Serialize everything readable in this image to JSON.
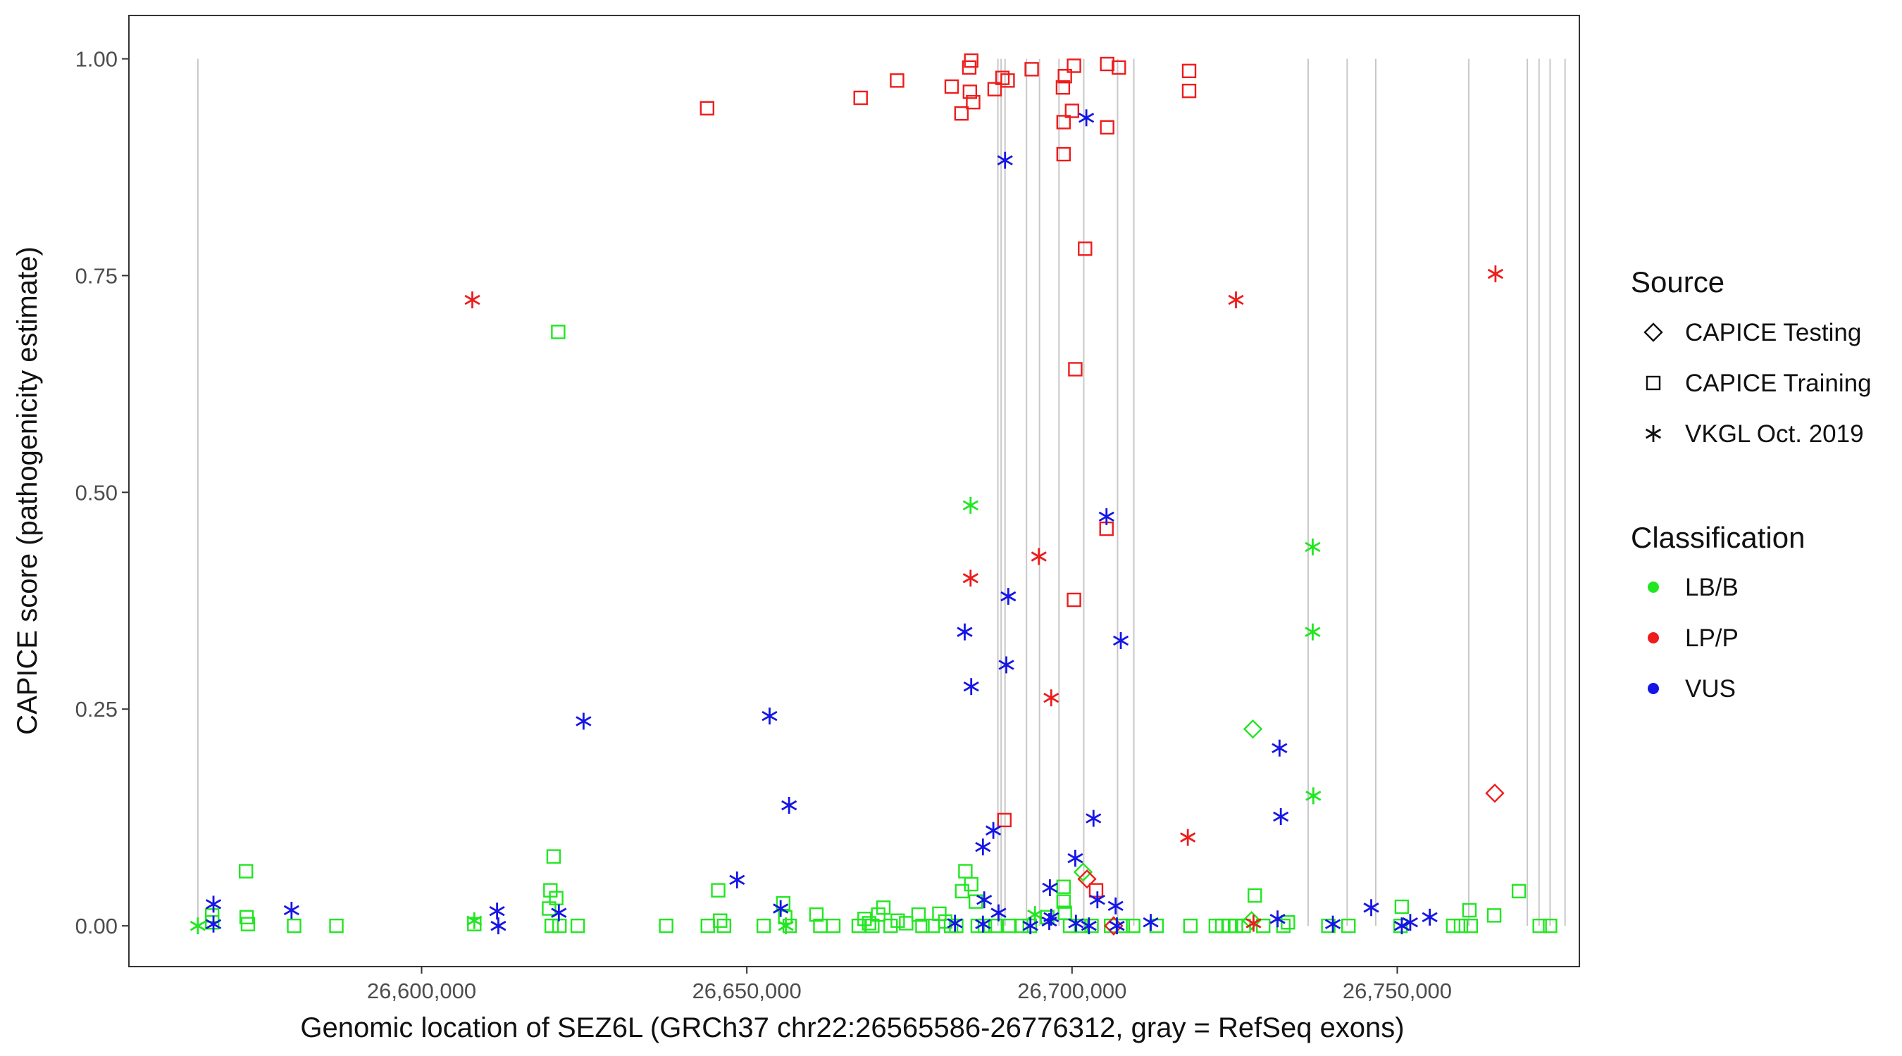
{
  "chart_data": {
    "type": "scatter",
    "xlabel": "Genomic location of SEZ6L (GRCh37 chr22:26565586-26776312, gray = RefSeq exons)",
    "ylabel": "CAPICE score (pathogenicity estimate)",
    "xlim": [
      26555000,
      26778000
    ],
    "ylim": [
      -0.047,
      1.05
    ],
    "x_ticks": [
      26600000,
      26650000,
      26700000,
      26750000
    ],
    "x_tick_labels": [
      "26,600,000",
      "26,650,000",
      "26,700,000",
      "26,750,000"
    ],
    "y_ticks": [
      0,
      0.25,
      0.5,
      0.75,
      1.0
    ],
    "y_tick_labels": [
      "0.00",
      "0.25",
      "0.50",
      "0.75",
      "1.00"
    ],
    "grid": false,
    "exon_positions": [
      26565600,
      26688600,
      26689100,
      26689700,
      26693000,
      26695000,
      26698000,
      26701800,
      26707000,
      26709500,
      26736300,
      26742300,
      26746700,
      26761000,
      26770000,
      26771800,
      26773500,
      26775800
    ],
    "colors": {
      "LB/B": "#22e622",
      "LP/P": "#ee1c1c",
      "VUS": "#1515e6",
      "exon": "#c8c8c8"
    },
    "legend": {
      "position": "right",
      "source_title": "Source",
      "source_items": [
        {
          "label": "CAPICE Testing",
          "shape": "diamond"
        },
        {
          "label": "CAPICE Training",
          "shape": "square"
        },
        {
          "label": "VKGL Oct. 2019",
          "shape": "asterisk"
        }
      ],
      "class_title": "Classification",
      "class_items": [
        {
          "label": "LB/B",
          "color": "#22e622"
        },
        {
          "label": "LP/P",
          "color": "#ee1c1c"
        },
        {
          "label": "VUS",
          "color": "#1515e6"
        }
      ]
    },
    "series": [
      {
        "name": "CAPICE Training",
        "shape": "square",
        "points": [
          [
            26643900,
            0.943,
            "LP/P"
          ],
          [
            26667500,
            0.955,
            "LP/P"
          ],
          [
            26673100,
            0.975,
            "LP/P"
          ],
          [
            26681500,
            0.968,
            "LP/P"
          ],
          [
            26683000,
            0.937,
            "LP/P"
          ],
          [
            26684200,
            0.99,
            "LP/P"
          ],
          [
            26684500,
            0.998,
            "LP/P"
          ],
          [
            26684300,
            0.962,
            "LP/P"
          ],
          [
            26684800,
            0.95,
            "LP/P"
          ],
          [
            26688100,
            0.965,
            "LP/P"
          ],
          [
            26689300,
            0.978,
            "LP/P"
          ],
          [
            26690100,
            0.975,
            "LP/P"
          ],
          [
            26693800,
            0.988,
            "LP/P"
          ],
          [
            26698600,
            0.967,
            "LP/P"
          ],
          [
            26698900,
            0.98,
            "LP/P"
          ],
          [
            26698700,
            0.927,
            "LP/P"
          ],
          [
            26700300,
            0.992,
            "LP/P"
          ],
          [
            26700000,
            0.94,
            "LP/P"
          ],
          [
            26705400,
            0.994,
            "LP/P"
          ],
          [
            26707200,
            0.99,
            "LP/P"
          ],
          [
            26705400,
            0.921,
            "LP/P"
          ],
          [
            26718000,
            0.986,
            "LP/P"
          ],
          [
            26718000,
            0.963,
            "LP/P"
          ],
          [
            26698700,
            0.89,
            "LP/P"
          ],
          [
            26702000,
            0.781,
            "LP/P"
          ],
          [
            26700500,
            0.642,
            "LP/P"
          ],
          [
            26705300,
            0.458,
            "LP/P"
          ],
          [
            26700300,
            0.376,
            "LP/P"
          ],
          [
            26689600,
            0.122,
            "LP/P"
          ],
          [
            26703700,
            0.041,
            "LP/P"
          ],
          [
            26621000,
            0.685,
            "LB/B"
          ],
          [
            26620300,
            0.08,
            "LB/B"
          ],
          [
            26573000,
            0.063,
            "LB/B"
          ],
          [
            26619800,
            0.041,
            "LB/B"
          ],
          [
            26620700,
            0.032,
            "LB/B"
          ],
          [
            26619600,
            0.02,
            "LB/B"
          ],
          [
            26567800,
            0.012,
            "LB/B"
          ],
          [
            26567800,
            0.004,
            "LB/B"
          ],
          [
            26573100,
            0.01,
            "LB/B"
          ],
          [
            26573300,
            0.002,
            "LB/B"
          ],
          [
            26580400,
            0.0,
            "LB/B"
          ],
          [
            26586900,
            0.0,
            "LB/B"
          ],
          [
            26608100,
            0.002,
            "LB/B"
          ],
          [
            26620000,
            0.0,
            "LB/B"
          ],
          [
            26621200,
            0.0,
            "LB/B"
          ],
          [
            26624000,
            0.0,
            "LB/B"
          ],
          [
            26637600,
            0.0,
            "LB/B"
          ],
          [
            26644000,
            0.0,
            "LB/B"
          ],
          [
            26645600,
            0.041,
            "LB/B"
          ],
          [
            26645900,
            0.006,
            "LB/B"
          ],
          [
            26646500,
            0.0,
            "LB/B"
          ],
          [
            26652600,
            0.0,
            "LB/B"
          ],
          [
            26655600,
            0.026,
            "LB/B"
          ],
          [
            26655900,
            0.01,
            "LB/B"
          ],
          [
            26656600,
            0.0,
            "LB/B"
          ],
          [
            26660700,
            0.013,
            "LB/B"
          ],
          [
            26661300,
            0.0,
            "LB/B"
          ],
          [
            26663300,
            0.0,
            "LB/B"
          ],
          [
            26667200,
            0.0,
            "LB/B"
          ],
          [
            26668100,
            0.008,
            "LB/B"
          ],
          [
            26668800,
            0.003,
            "LB/B"
          ],
          [
            26669300,
            0.0,
            "LB/B"
          ],
          [
            26670200,
            0.013,
            "LB/B"
          ],
          [
            26671000,
            0.021,
            "LB/B"
          ],
          [
            26672100,
            0.0,
            "LB/B"
          ],
          [
            26673200,
            0.006,
            "LB/B"
          ],
          [
            26674500,
            0.003,
            "LB/B"
          ],
          [
            26676400,
            0.013,
            "LB/B"
          ],
          [
            26677000,
            0.0,
            "LB/B"
          ],
          [
            26678600,
            0.0,
            "LB/B"
          ],
          [
            26679600,
            0.014,
            "LB/B"
          ],
          [
            26680500,
            0.005,
            "LB/B"
          ],
          [
            26681400,
            0.0,
            "LB/B"
          ],
          [
            26682200,
            0.0,
            "LB/B"
          ],
          [
            26683100,
            0.04,
            "LB/B"
          ],
          [
            26683600,
            0.063,
            "LB/B"
          ],
          [
            26684500,
            0.048,
            "LB/B"
          ],
          [
            26685200,
            0.028,
            "LB/B"
          ],
          [
            26685500,
            0.0,
            "LB/B"
          ],
          [
            26686600,
            0.0,
            "LB/B"
          ],
          [
            26688200,
            0.0,
            "LB/B"
          ],
          [
            26690400,
            0.0,
            "LB/B"
          ],
          [
            26692200,
            0.0,
            "LB/B"
          ],
          [
            26693500,
            0.0,
            "LB/B"
          ],
          [
            26696200,
            0.01,
            "LB/B"
          ],
          [
            26698700,
            0.045,
            "LB/B"
          ],
          [
            26698700,
            0.028,
            "LB/B"
          ],
          [
            26698900,
            0.015,
            "LB/B"
          ],
          [
            26699700,
            0.0,
            "LB/B"
          ],
          [
            26701400,
            0.0,
            "LB/B"
          ],
          [
            26703000,
            0.0,
            "LB/B"
          ],
          [
            26706000,
            0.0,
            "LB/B"
          ],
          [
            26707800,
            0.0,
            "LB/B"
          ],
          [
            26709400,
            0.0,
            "LB/B"
          ],
          [
            26713000,
            0.0,
            "LB/B"
          ],
          [
            26718200,
            0.0,
            "LB/B"
          ],
          [
            26722100,
            0.0,
            "LB/B"
          ],
          [
            26723100,
            0.0,
            "LB/B"
          ],
          [
            26724200,
            0.0,
            "LB/B"
          ],
          [
            26725200,
            0.0,
            "LB/B"
          ],
          [
            26726400,
            0.0,
            "LB/B"
          ],
          [
            26728100,
            0.035,
            "LB/B"
          ],
          [
            26729400,
            0.0,
            "LB/B"
          ],
          [
            26732500,
            0.0,
            "LB/B"
          ],
          [
            26733200,
            0.004,
            "LB/B"
          ],
          [
            26739400,
            0.0,
            "LB/B"
          ],
          [
            26742500,
            0.0,
            "LB/B"
          ],
          [
            26750700,
            0.022,
            "LB/B"
          ],
          [
            26750500,
            0.0,
            "LB/B"
          ],
          [
            26758600,
            0.0,
            "LB/B"
          ],
          [
            26759800,
            0.0,
            "LB/B"
          ],
          [
            26761100,
            0.018,
            "LB/B"
          ],
          [
            26761300,
            0.0,
            "LB/B"
          ],
          [
            26764900,
            0.012,
            "LB/B"
          ],
          [
            26768700,
            0.04,
            "LB/B"
          ],
          [
            26771900,
            0.0,
            "LB/B"
          ],
          [
            26773500,
            0.0,
            "LB/B"
          ]
        ]
      },
      {
        "name": "CAPICE Testing",
        "shape": "diamond",
        "points": [
          [
            26727800,
            0.227,
            "LB/B"
          ],
          [
            26701700,
            0.062,
            "LB/B"
          ],
          [
            26727600,
            0.006,
            "LB/B"
          ],
          [
            26765000,
            0.153,
            "LP/P"
          ],
          [
            26702300,
            0.054,
            "LP/P"
          ],
          [
            26706400,
            0.0,
            "LP/P"
          ]
        ]
      },
      {
        "name": "VKGL Oct. 2019",
        "shape": "asterisk",
        "points": [
          [
            26607800,
            0.722,
            "LP/P"
          ],
          [
            26725200,
            0.722,
            "LP/P"
          ],
          [
            26765100,
            0.752,
            "LP/P"
          ],
          [
            26684400,
            0.401,
            "LP/P"
          ],
          [
            26694900,
            0.426,
            "LP/P"
          ],
          [
            26696800,
            0.263,
            "LP/P"
          ],
          [
            26717800,
            0.102,
            "LP/P"
          ],
          [
            26727900,
            0.003,
            "LP/P"
          ],
          [
            26684400,
            0.485,
            "LB/B"
          ],
          [
            26737000,
            0.437,
            "LB/B"
          ],
          [
            26737000,
            0.339,
            "LB/B"
          ],
          [
            26737100,
            0.15,
            "LB/B"
          ],
          [
            26565600,
            0.0,
            "LB/B"
          ],
          [
            26608100,
            0.006,
            "LB/B"
          ],
          [
            26656000,
            0.0,
            "LB/B"
          ],
          [
            26694300,
            0.013,
            "LB/B"
          ],
          [
            26702200,
            0.932,
            "VUS"
          ],
          [
            26689700,
            0.883,
            "VUS"
          ],
          [
            26705300,
            0.472,
            "VUS"
          ],
          [
            26690200,
            0.38,
            "VUS"
          ],
          [
            26683500,
            0.339,
            "VUS"
          ],
          [
            26707500,
            0.329,
            "VUS"
          ],
          [
            26689900,
            0.301,
            "VUS"
          ],
          [
            26684500,
            0.276,
            "VUS"
          ],
          [
            26653500,
            0.242,
            "VUS"
          ],
          [
            26624900,
            0.236,
            "VUS"
          ],
          [
            26731900,
            0.205,
            "VUS"
          ],
          [
            26656500,
            0.139,
            "VUS"
          ],
          [
            26732100,
            0.126,
            "VUS"
          ],
          [
            26703300,
            0.124,
            "VUS"
          ],
          [
            26687900,
            0.11,
            "VUS"
          ],
          [
            26686300,
            0.091,
            "VUS"
          ],
          [
            26700500,
            0.078,
            "VUS"
          ],
          [
            26648500,
            0.053,
            "VUS"
          ],
          [
            26696600,
            0.044,
            "VUS"
          ],
          [
            26686500,
            0.03,
            "VUS"
          ],
          [
            26703900,
            0.03,
            "VUS"
          ],
          [
            26706700,
            0.023,
            "VUS"
          ],
          [
            26568000,
            0.025,
            "VUS"
          ],
          [
            26580000,
            0.018,
            "VUS"
          ],
          [
            26611600,
            0.017,
            "VUS"
          ],
          [
            26655200,
            0.02,
            "VUS"
          ],
          [
            26688700,
            0.015,
            "VUS"
          ],
          [
            26746000,
            0.021,
            "VUS"
          ],
          [
            26755000,
            0.01,
            "VUS"
          ],
          [
            26568000,
            0.002,
            "VUS"
          ],
          [
            26611800,
            0.0,
            "VUS"
          ],
          [
            26621100,
            0.015,
            "VUS"
          ],
          [
            26682000,
            0.003,
            "VUS"
          ],
          [
            26686300,
            0.002,
            "VUS"
          ],
          [
            26693600,
            0.0,
            "VUS"
          ],
          [
            26696500,
            0.005,
            "VUS"
          ],
          [
            26696800,
            0.01,
            "VUS"
          ],
          [
            26700600,
            0.003,
            "VUS"
          ],
          [
            26702600,
            0.0,
            "VUS"
          ],
          [
            26706900,
            0.0,
            "VUS"
          ],
          [
            26712100,
            0.004,
            "VUS"
          ],
          [
            26731600,
            0.008,
            "VUS"
          ],
          [
            26740100,
            0.002,
            "VUS"
          ],
          [
            26750700,
            0.0,
            "VUS"
          ],
          [
            26752000,
            0.004,
            "VUS"
          ]
        ]
      }
    ]
  }
}
